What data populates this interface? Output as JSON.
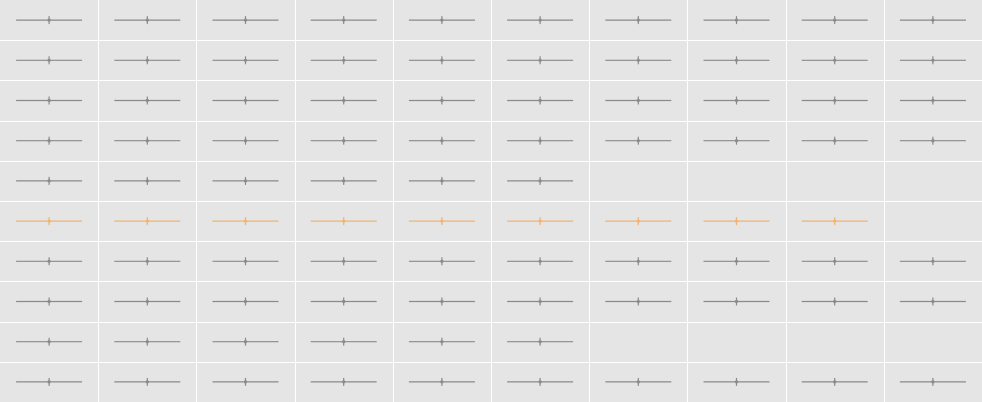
{
  "chart_data": {
    "type": "grid-of-sparklines",
    "rows": 10,
    "columns": 10,
    "grid": true,
    "background_color": "#e5e5e5",
    "gridline_color": "#ffffff",
    "series_color": "#8a8a8a",
    "highlight_color": "#f0b46e",
    "highlighted_row": 6,
    "cells_per_row": [
      10,
      10,
      10,
      10,
      6,
      9,
      10,
      10,
      6,
      10
    ]
  }
}
